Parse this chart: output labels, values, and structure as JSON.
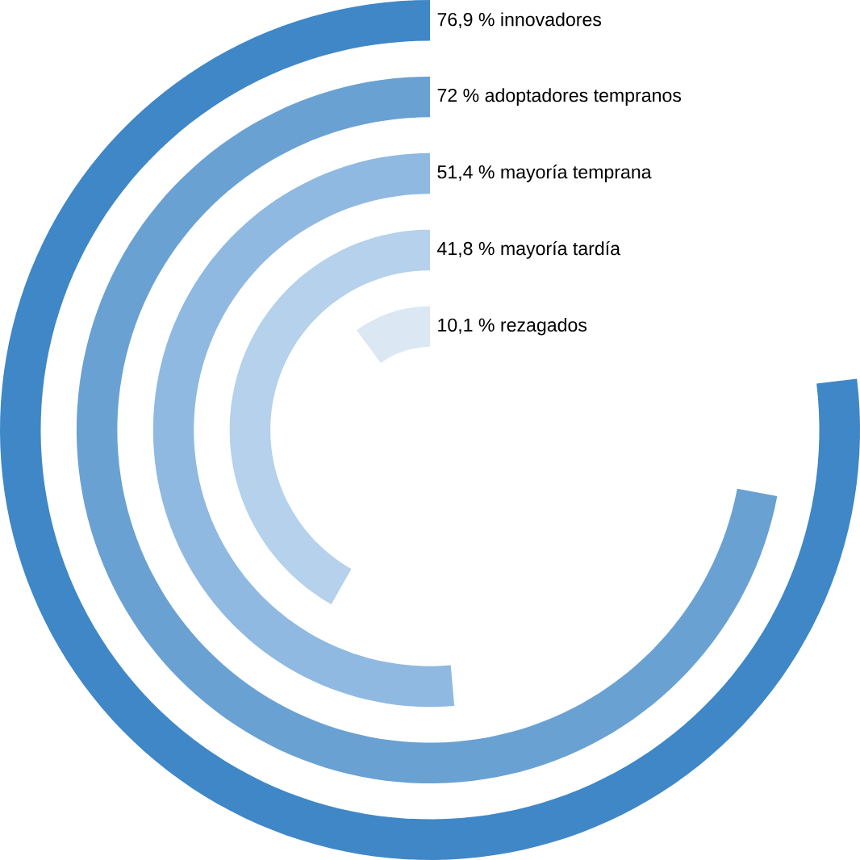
{
  "chart_data": {
    "type": "other",
    "categories": [
      "innovadores",
      "adoptadores tempranos",
      "mayoría temprana",
      "mayoría tardía",
      "rezagados"
    ],
    "values": [
      76.9,
      72,
      51.4,
      41.8,
      10.1
    ],
    "value_labels": [
      "76,9 %",
      "72 %",
      "51,4 %",
      "41,8 %",
      "10,1 %"
    ],
    "colors": [
      "#3f87c6",
      "#6aa1d3",
      "#8fb9e0",
      "#b5d1eb",
      "#dbe8f4"
    ]
  }
}
